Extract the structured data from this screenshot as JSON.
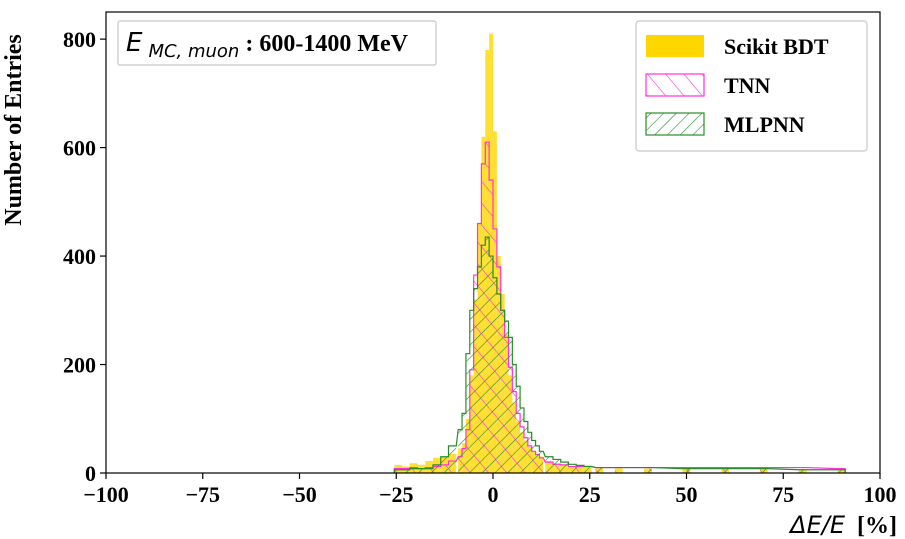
{
  "chart_data": {
    "type": "histogram",
    "xlabel_math": "ΔE/E",
    "xlabel_unit": "[%]",
    "ylabel": "Number of Entries",
    "xlim": [
      -100,
      100
    ],
    "ylim": [
      0,
      850
    ],
    "xticks": [
      -100,
      -75,
      -50,
      -25,
      0,
      25,
      50,
      75,
      100
    ],
    "xtick_labels": [
      "−100",
      "−75",
      "−50",
      "−25",
      "0",
      "25",
      "50",
      "75",
      "100"
    ],
    "yticks": [
      0,
      200,
      400,
      600,
      800
    ],
    "ytick_labels": [
      "0",
      "200",
      "400",
      "600",
      "800"
    ],
    "annotation": {
      "math_main": "E",
      "math_sub": "MC, muon",
      "text": ": 600-1400 MeV"
    },
    "legend_position": "top-right",
    "bin_width": 1,
    "bin_centers": [
      -24.5,
      -22.5,
      -20.5,
      -18.5,
      -16.5,
      -14.5,
      -12.5,
      -10.5,
      -8.5,
      -7.5,
      -6.5,
      -5.5,
      -4.5,
      -3.5,
      -2.5,
      -1.5,
      -0.5,
      0.5,
      1.5,
      2.5,
      3.5,
      4.5,
      5.5,
      6.5,
      7.5,
      8.5,
      9.5,
      10.5,
      11.5,
      12.5,
      14.5,
      16.5,
      18.5,
      20.5,
      22.5,
      24.5,
      27.5,
      32.5,
      40,
      50,
      60,
      70,
      80,
      90
    ],
    "series": [
      {
        "name": "Scikit BDT",
        "color": "#FFD700",
        "style": "filled",
        "values": [
          15,
          12,
          18,
          15,
          22,
          28,
          30,
          35,
          45,
          55,
          100,
          180,
          320,
          460,
          620,
          780,
          810,
          630,
          400,
          330,
          255,
          180,
          130,
          95,
          75,
          60,
          48,
          40,
          34,
          30,
          22,
          18,
          15,
          12,
          10,
          10,
          9,
          9,
          8,
          8,
          7,
          7,
          6,
          5
        ]
      },
      {
        "name": "TNN",
        "color": "#ff33dd",
        "style": "hatch-forward",
        "values": [
          8,
          8,
          10,
          8,
          10,
          12,
          15,
          22,
          30,
          45,
          80,
          190,
          365,
          460,
          570,
          610,
          540,
          450,
          380,
          300,
          250,
          195,
          150,
          110,
          85,
          65,
          50,
          40,
          34,
          28,
          20,
          16,
          15,
          12,
          12,
          12,
          10,
          10,
          10,
          10,
          10,
          10,
          10,
          8
        ]
      },
      {
        "name": "MLPNN",
        "color": "#2a8c2a",
        "style": "hatch-back",
        "values": [
          6,
          6,
          8,
          8,
          8,
          15,
          30,
          50,
          80,
          110,
          220,
          300,
          340,
          380,
          420,
          435,
          400,
          360,
          330,
          300,
          280,
          250,
          200,
          160,
          120,
          95,
          75,
          60,
          50,
          40,
          30,
          25,
          20,
          16,
          14,
          12,
          10,
          10,
          10,
          8,
          8,
          8,
          6,
          6
        ]
      }
    ]
  }
}
